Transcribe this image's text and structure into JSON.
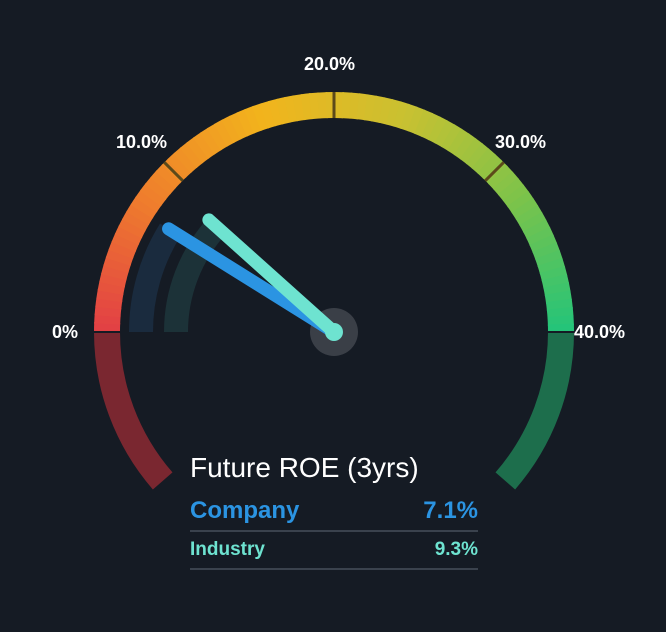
{
  "chart_data": {
    "type": "gauge",
    "title": "Future ROE (3yrs)",
    "scale": {
      "min": 0,
      "max": 40,
      "unit": "%"
    },
    "tick_values": [
      0,
      10,
      20,
      30,
      40
    ],
    "tick_labels": [
      "0%",
      "10.0%",
      "20.0%",
      "30.0%",
      "40.0%"
    ],
    "series": [
      {
        "name": "Company",
        "value": 7.1,
        "value_label": "7.1%",
        "color": "#2b94e2"
      },
      {
        "name": "Industry",
        "value": 9.3,
        "value_label": "9.3%",
        "color": "#6ee3d0"
      }
    ],
    "colors": {
      "background": "#151b24",
      "gradient_stops": [
        "#e23f45",
        "#ef7f2c",
        "#f2b41c",
        "#c9c131",
        "#7dc34a",
        "#22c47a"
      ],
      "lower_left": "#7a2730",
      "lower_right": "#1d6e4c",
      "company_track": "#1a2b3e",
      "industry_track": "#1c3238",
      "hub": "#3a3f47"
    }
  }
}
